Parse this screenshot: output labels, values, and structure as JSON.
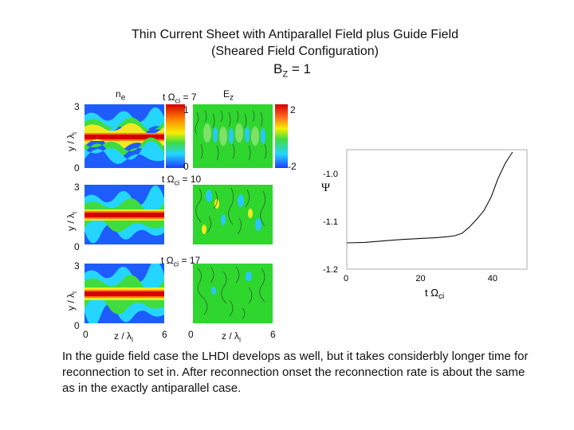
{
  "title": {
    "line1": "Thin Current Sheet with Antiparallel Field plus Guide Field",
    "line2": "(Sheared Field Configuration)",
    "bz_label": "B",
    "bz_sub": "Z",
    "bz_value": "= 1"
  },
  "panels": {
    "ne_label": "n",
    "ne_sub": "e",
    "ez_label": "E",
    "ez_sub": "z",
    "time_prefix": "t Ω",
    "time_sub": "ci",
    "times": [
      "= 7",
      "= 10",
      "= 17"
    ],
    "y_axis_label": "y / λ",
    "y_axis_sub": "i",
    "y_ticks": [
      "3",
      "0"
    ],
    "x_axis_label": "z / λ",
    "x_axis_sub": "i",
    "x_ticks_left": [
      "0",
      "6"
    ],
    "x_ticks_right": [
      "0",
      "6"
    ],
    "colorbar_left_ticks": [
      "1",
      "0"
    ],
    "colorbar_right_ticks": [
      "2",
      "-2"
    ]
  },
  "chart_data": {
    "type": "line",
    "ylabel": "Ψ",
    "xlabel": "t Ω",
    "xlabel_sub": "ci",
    "xlim": [
      0,
      50
    ],
    "ylim": [
      -1.2,
      -0.95
    ],
    "x_ticks": [
      "0",
      "20",
      "40"
    ],
    "y_ticks": [
      "-1.0",
      "-1.1",
      "-1.2"
    ],
    "x": [
      0,
      5,
      10,
      15,
      20,
      25,
      28,
      30,
      32,
      34,
      36,
      38,
      40,
      42,
      44,
      46
    ],
    "y": [
      -1.145,
      -1.144,
      -1.141,
      -1.138,
      -1.136,
      -1.134,
      -1.132,
      -1.13,
      -1.125,
      -1.112,
      -1.096,
      -1.078,
      -1.05,
      -1.01,
      -0.978,
      -0.955
    ]
  },
  "caption": "In the guide field case the LHDI develops as well, but it takes considerbly longer time for reconnection to set in.  After  reconnection onset the reconnection rate is about the same as in the exactly antiparallel case."
}
